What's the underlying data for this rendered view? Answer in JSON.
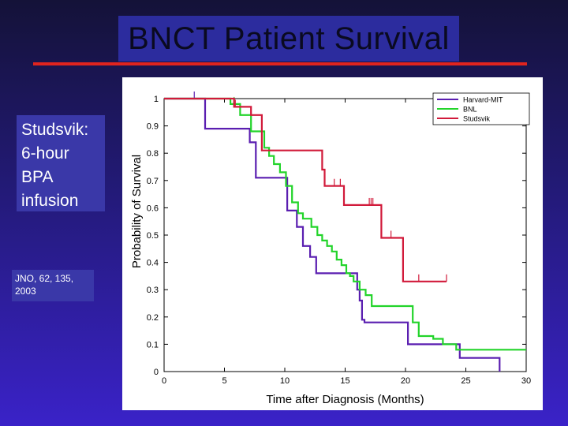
{
  "title": "BNCT Patient Survival",
  "side_note": {
    "lines": [
      "Studsvik:",
      "6-hour",
      "BPA",
      "infusion"
    ]
  },
  "reference": {
    "lines": [
      "JNO, 62, 135,",
      "2003"
    ]
  },
  "colors": {
    "harvard": "#5a1eb0",
    "bnl": "#22d42a",
    "studsvik": "#d11a3a",
    "title_bar": "#2c2c9e",
    "accent_rule": "#e0241e"
  },
  "chart_data": {
    "type": "line",
    "step": true,
    "xlabel": "Time after Diagnosis (Months)",
    "ylabel": "Probability of Survival",
    "xlim": [
      0,
      30
    ],
    "ylim": [
      0,
      1
    ],
    "xticks": [
      "0",
      "5",
      "10",
      "15",
      "20",
      "25",
      "30"
    ],
    "yticks": [
      "0",
      "0.1",
      "0.2",
      "0.3",
      "0.4",
      "0.5",
      "0.6",
      "0.7",
      "0.8",
      "0.9",
      "1"
    ],
    "legend_position": "top-right",
    "series": [
      {
        "name": "Harvard-MIT",
        "color": "#5a1eb0",
        "points": [
          [
            0,
            1
          ],
          [
            3.4,
            1
          ],
          [
            3.4,
            0.89
          ],
          [
            7.1,
            0.89
          ],
          [
            7.1,
            0.84
          ],
          [
            7.6,
            0.84
          ],
          [
            7.6,
            0.71
          ],
          [
            10.2,
            0.71
          ],
          [
            10.2,
            0.59
          ],
          [
            11,
            0.59
          ],
          [
            11,
            0.53
          ],
          [
            11.5,
            0.53
          ],
          [
            11.5,
            0.46
          ],
          [
            12.1,
            0.46
          ],
          [
            12.1,
            0.42
          ],
          [
            12.6,
            0.42
          ],
          [
            12.6,
            0.36
          ],
          [
            16,
            0.36
          ],
          [
            16,
            0.3
          ],
          [
            16.2,
            0.3
          ],
          [
            16.2,
            0.26
          ],
          [
            16.4,
            0.26
          ],
          [
            16.4,
            0.19
          ],
          [
            16.6,
            0.19
          ],
          [
            16.6,
            0.18
          ],
          [
            20.2,
            0.18
          ],
          [
            20.2,
            0.1
          ],
          [
            24.5,
            0.1
          ],
          [
            24.5,
            0.05
          ],
          [
            27.8,
            0.05
          ],
          [
            27.8,
            0
          ]
        ],
        "censor": [
          2.5
        ]
      },
      {
        "name": "BNL",
        "color": "#22d42a",
        "points": [
          [
            0,
            1
          ],
          [
            5.5,
            1
          ],
          [
            5.5,
            0.98
          ],
          [
            6.3,
            0.98
          ],
          [
            6.3,
            0.94
          ],
          [
            7.2,
            0.94
          ],
          [
            7.2,
            0.88
          ],
          [
            8.3,
            0.88
          ],
          [
            8.3,
            0.82
          ],
          [
            8.7,
            0.82
          ],
          [
            8.7,
            0.79
          ],
          [
            9.1,
            0.79
          ],
          [
            9.1,
            0.76
          ],
          [
            9.6,
            0.76
          ],
          [
            9.6,
            0.73
          ],
          [
            10.1,
            0.73
          ],
          [
            10.1,
            0.68
          ],
          [
            10.6,
            0.68
          ],
          [
            10.6,
            0.62
          ],
          [
            11.1,
            0.62
          ],
          [
            11.1,
            0.58
          ],
          [
            11.5,
            0.58
          ],
          [
            11.5,
            0.56
          ],
          [
            12.2,
            0.56
          ],
          [
            12.2,
            0.53
          ],
          [
            12.7,
            0.53
          ],
          [
            12.7,
            0.5
          ],
          [
            13.1,
            0.5
          ],
          [
            13.1,
            0.48
          ],
          [
            13.5,
            0.48
          ],
          [
            13.5,
            0.46
          ],
          [
            13.9,
            0.46
          ],
          [
            13.9,
            0.44
          ],
          [
            14.3,
            0.44
          ],
          [
            14.3,
            0.41
          ],
          [
            14.7,
            0.41
          ],
          [
            14.7,
            0.39
          ],
          [
            15.1,
            0.39
          ],
          [
            15.1,
            0.36
          ],
          [
            15.4,
            0.36
          ],
          [
            15.4,
            0.35
          ],
          [
            15.7,
            0.35
          ],
          [
            15.7,
            0.33
          ],
          [
            16.2,
            0.33
          ],
          [
            16.2,
            0.3
          ],
          [
            16.7,
            0.3
          ],
          [
            16.7,
            0.28
          ],
          [
            17.2,
            0.28
          ],
          [
            17.2,
            0.24
          ],
          [
            20.6,
            0.24
          ],
          [
            20.6,
            0.18
          ],
          [
            21.1,
            0.18
          ],
          [
            21.1,
            0.13
          ],
          [
            22.3,
            0.13
          ],
          [
            22.3,
            0.12
          ],
          [
            23.1,
            0.12
          ],
          [
            23.1,
            0.1
          ],
          [
            24.2,
            0.1
          ],
          [
            24.2,
            0.08
          ],
          [
            30,
            0.08
          ]
        ],
        "censor": [
          5.8
        ]
      },
      {
        "name": "Studsvik",
        "color": "#d11a3a",
        "points": [
          [
            0,
            1
          ],
          [
            5.8,
            1
          ],
          [
            5.8,
            0.97
          ],
          [
            7.2,
            0.97
          ],
          [
            7.2,
            0.94
          ],
          [
            8.1,
            0.94
          ],
          [
            8.1,
            0.81
          ],
          [
            13.1,
            0.81
          ],
          [
            13.1,
            0.74
          ],
          [
            13.3,
            0.74
          ],
          [
            13.3,
            0.68
          ],
          [
            14.9,
            0.68
          ],
          [
            14.9,
            0.61
          ],
          [
            18,
            0.61
          ],
          [
            18,
            0.49
          ],
          [
            19.8,
            0.49
          ],
          [
            19.8,
            0.33
          ],
          [
            23.4,
            0.33
          ]
        ],
        "censor": [
          5.9,
          14.1,
          14.6,
          17,
          17.15,
          17.3,
          18.8,
          21.1,
          23.4
        ]
      }
    ]
  }
}
